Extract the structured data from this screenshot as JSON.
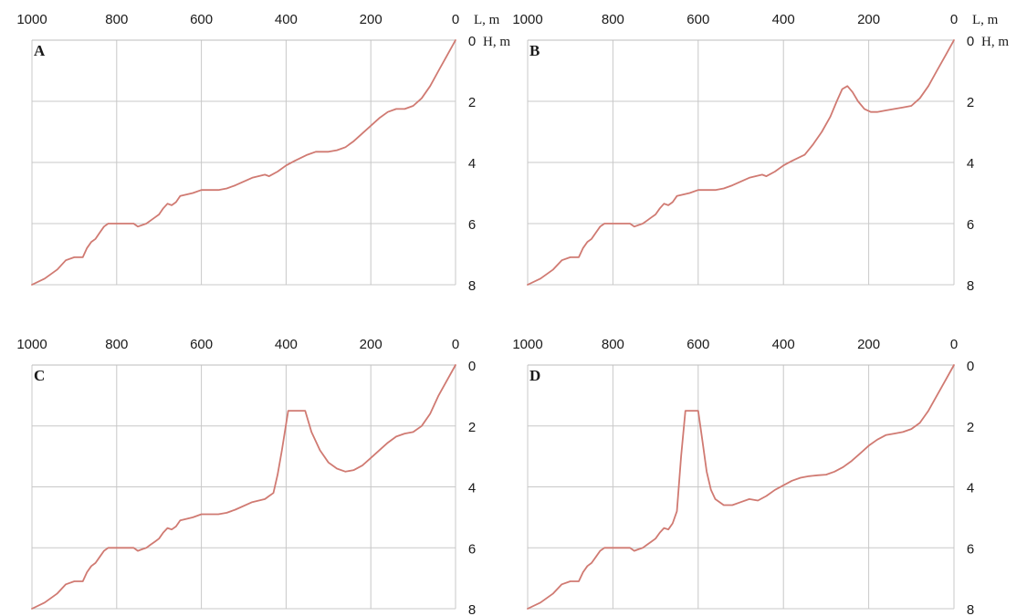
{
  "chart_data": [
    {
      "type": "line",
      "panel_label": "A",
      "x_ticks": [
        1000,
        800,
        600,
        400,
        200,
        0
      ],
      "y_ticks": [
        0,
        2,
        4,
        6,
        8
      ],
      "xlabel": "L, m",
      "ylabel": "H, m",
      "xlim": [
        1000,
        0
      ],
      "ylim": [
        0,
        8
      ],
      "grid": true,
      "x_axis_position": "top",
      "y_axis_position": "right",
      "y_inverted": true,
      "line_color": "#d07a72",
      "series": [
        {
          "x": [
            1000,
            970,
            940,
            920,
            900,
            890,
            880,
            870,
            860,
            850,
            840,
            830,
            820,
            800,
            780,
            760,
            750,
            740,
            730,
            720,
            710,
            700,
            690,
            680,
            670,
            660,
            650,
            620,
            600,
            560,
            540,
            520,
            480,
            450,
            440,
            420,
            400,
            380,
            350,
            330,
            300,
            280,
            260,
            240,
            220,
            200,
            180,
            160,
            140,
            120,
            100,
            80,
            60,
            40,
            20,
            0
          ],
          "y": [
            8.0,
            7.8,
            7.5,
            7.2,
            7.1,
            7.1,
            7.1,
            6.8,
            6.6,
            6.5,
            6.3,
            6.1,
            6.0,
            6.0,
            6.0,
            6.0,
            6.1,
            6.05,
            6.0,
            5.9,
            5.8,
            5.7,
            5.5,
            5.35,
            5.4,
            5.3,
            5.1,
            5.0,
            4.9,
            4.9,
            4.85,
            4.75,
            4.5,
            4.4,
            4.45,
            4.3,
            4.1,
            3.95,
            3.75,
            3.65,
            3.65,
            3.6,
            3.5,
            3.3,
            3.05,
            2.8,
            2.55,
            2.35,
            2.25,
            2.25,
            2.15,
            1.9,
            1.5,
            1.0,
            0.5,
            0.0
          ]
        }
      ]
    },
    {
      "type": "line",
      "panel_label": "B",
      "x_ticks": [
        1000,
        800,
        600,
        400,
        200,
        0
      ],
      "y_ticks": [
        0,
        2,
        4,
        6,
        8
      ],
      "xlabel": "L, m",
      "ylabel": "H, m",
      "xlim": [
        1000,
        0
      ],
      "ylim": [
        0,
        8
      ],
      "grid": true,
      "x_axis_position": "top",
      "y_axis_position": "right",
      "y_inverted": true,
      "line_color": "#d07a72",
      "series": [
        {
          "x": [
            1000,
            970,
            940,
            920,
            900,
            890,
            880,
            870,
            860,
            850,
            840,
            830,
            820,
            800,
            780,
            760,
            750,
            740,
            730,
            720,
            710,
            700,
            690,
            680,
            670,
            660,
            650,
            620,
            600,
            560,
            540,
            520,
            480,
            450,
            440,
            420,
            400,
            380,
            350,
            330,
            310,
            290,
            275,
            262,
            250,
            238,
            225,
            210,
            195,
            180,
            160,
            140,
            120,
            100,
            80,
            60,
            40,
            20,
            0
          ],
          "y": [
            8.0,
            7.8,
            7.5,
            7.2,
            7.1,
            7.1,
            7.1,
            6.8,
            6.6,
            6.5,
            6.3,
            6.1,
            6.0,
            6.0,
            6.0,
            6.0,
            6.1,
            6.05,
            6.0,
            5.9,
            5.8,
            5.7,
            5.5,
            5.35,
            5.4,
            5.3,
            5.1,
            5.0,
            4.9,
            4.9,
            4.85,
            4.75,
            4.5,
            4.4,
            4.45,
            4.3,
            4.1,
            3.95,
            3.75,
            3.4,
            3.0,
            2.5,
            2.0,
            1.6,
            1.5,
            1.7,
            2.0,
            2.25,
            2.35,
            2.35,
            2.3,
            2.25,
            2.2,
            2.15,
            1.9,
            1.5,
            1.0,
            0.5,
            0.0
          ]
        }
      ]
    },
    {
      "type": "line",
      "panel_label": "C",
      "x_ticks": [
        1000,
        800,
        600,
        400,
        200,
        0
      ],
      "y_ticks": [
        0,
        2,
        4,
        6,
        8
      ],
      "xlabel": "",
      "ylabel": "",
      "xlim": [
        1000,
        0
      ],
      "ylim": [
        0,
        8
      ],
      "grid": true,
      "x_axis_position": "top",
      "y_axis_position": "right",
      "y_inverted": true,
      "line_color": "#d07a72",
      "series": [
        {
          "x": [
            1000,
            970,
            940,
            920,
            900,
            890,
            880,
            870,
            860,
            850,
            840,
            830,
            820,
            800,
            780,
            760,
            750,
            740,
            730,
            720,
            710,
            700,
            690,
            680,
            670,
            660,
            650,
            620,
            600,
            560,
            540,
            520,
            480,
            450,
            440,
            430,
            420,
            410,
            395,
            385,
            370,
            355,
            340,
            320,
            300,
            280,
            260,
            240,
            220,
            200,
            180,
            160,
            140,
            120,
            100,
            80,
            60,
            40,
            20,
            0
          ],
          "y": [
            8.0,
            7.8,
            7.5,
            7.2,
            7.1,
            7.1,
            7.1,
            6.8,
            6.6,
            6.5,
            6.3,
            6.1,
            6.0,
            6.0,
            6.0,
            6.0,
            6.1,
            6.05,
            6.0,
            5.9,
            5.8,
            5.7,
            5.5,
            5.35,
            5.4,
            5.3,
            5.1,
            5.0,
            4.9,
            4.9,
            4.85,
            4.75,
            4.5,
            4.4,
            4.3,
            4.2,
            3.6,
            2.8,
            1.5,
            1.5,
            1.5,
            1.5,
            2.2,
            2.8,
            3.2,
            3.4,
            3.5,
            3.45,
            3.3,
            3.05,
            2.8,
            2.55,
            2.35,
            2.25,
            2.2,
            2.0,
            1.6,
            1.0,
            0.5,
            0.0
          ]
        }
      ]
    },
    {
      "type": "line",
      "panel_label": "D",
      "x_ticks": [
        1000,
        800,
        600,
        400,
        200,
        0
      ],
      "y_ticks": [
        0,
        2,
        4,
        6,
        8
      ],
      "xlabel": "",
      "ylabel": "",
      "xlim": [
        1000,
        0
      ],
      "ylim": [
        0,
        8
      ],
      "grid": true,
      "x_axis_position": "top",
      "y_axis_position": "right",
      "y_inverted": true,
      "line_color": "#d07a72",
      "series": [
        {
          "x": [
            1000,
            970,
            940,
            920,
            900,
            890,
            880,
            870,
            860,
            850,
            840,
            830,
            820,
            800,
            780,
            760,
            750,
            740,
            730,
            720,
            710,
            700,
            690,
            680,
            670,
            660,
            650,
            640,
            630,
            620,
            610,
            600,
            590,
            580,
            570,
            560,
            540,
            520,
            500,
            480,
            460,
            440,
            420,
            400,
            380,
            360,
            340,
            320,
            300,
            280,
            260,
            240,
            220,
            200,
            180,
            160,
            140,
            120,
            100,
            80,
            60,
            40,
            20,
            0
          ],
          "y": [
            8.0,
            7.8,
            7.5,
            7.2,
            7.1,
            7.1,
            7.1,
            6.8,
            6.6,
            6.5,
            6.3,
            6.1,
            6.0,
            6.0,
            6.0,
            6.0,
            6.1,
            6.05,
            6.0,
            5.9,
            5.8,
            5.7,
            5.5,
            5.35,
            5.4,
            5.2,
            4.8,
            3.0,
            1.5,
            1.5,
            1.5,
            1.5,
            2.5,
            3.5,
            4.1,
            4.4,
            4.6,
            4.6,
            4.5,
            4.4,
            4.45,
            4.3,
            4.1,
            3.95,
            3.8,
            3.7,
            3.65,
            3.62,
            3.6,
            3.5,
            3.35,
            3.15,
            2.9,
            2.65,
            2.45,
            2.3,
            2.25,
            2.2,
            2.1,
            1.9,
            1.5,
            1.0,
            0.5,
            0.0
          ]
        }
      ]
    }
  ]
}
